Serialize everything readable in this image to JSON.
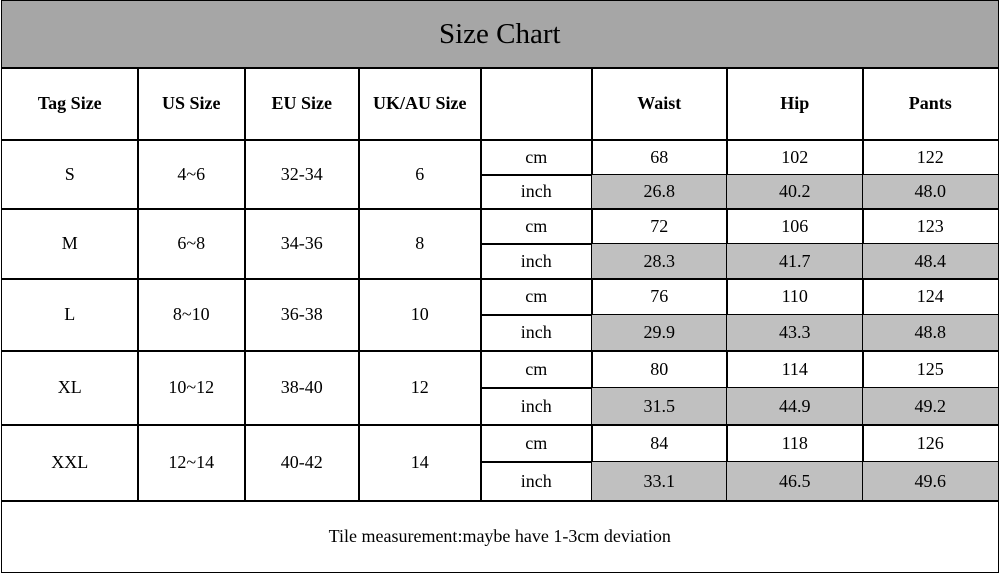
{
  "header": {
    "title": "Size Chart"
  },
  "table": {
    "size_columns": [
      "Tag Size",
      "US Size",
      "EU Size",
      "UK/AU Size"
    ],
    "measure_columns": [
      "Waist",
      "Hip",
      "Pants"
    ],
    "rows": [
      {
        "sizes": [
          "S",
          "4~6",
          "32-34",
          "6"
        ],
        "measurements": [
          {
            "unit": "cm",
            "values": [
              "68",
              "102",
              "122"
            ]
          },
          {
            "unit": "inch",
            "values": [
              "26.8",
              "40.2",
              "48.0"
            ]
          }
        ]
      },
      {
        "sizes": [
          "M",
          "6~8",
          "34-36",
          "8"
        ],
        "measurements": [
          {
            "unit": "cm",
            "values": [
              "72",
              "106",
              "123"
            ]
          },
          {
            "unit": "inch",
            "values": [
              "28.3",
              "41.7",
              "48.4"
            ]
          }
        ]
      },
      {
        "sizes": [
          "L",
          "8~10",
          "36-38",
          "10"
        ],
        "measurements": [
          {
            "unit": "cm",
            "values": [
              "76",
              "110",
              "124"
            ]
          },
          {
            "unit": "inch",
            "values": [
              "29.9",
              "43.3",
              "48.8"
            ]
          }
        ]
      },
      {
        "sizes": [
          "XL",
          "10~12",
          "38-40",
          "12"
        ],
        "measurements": [
          {
            "unit": "cm",
            "values": [
              "80",
              "114",
              "125"
            ]
          },
          {
            "unit": "inch",
            "values": [
              "31.5",
              "44.9",
              "49.2"
            ]
          }
        ]
      },
      {
        "sizes": [
          "XXL",
          "12~14",
          "40-42",
          "14"
        ],
        "measurements": [
          {
            "unit": "cm",
            "values": [
              "84",
              "118",
              "126"
            ]
          },
          {
            "unit": "inch",
            "values": [
              "33.1",
              "46.5",
              "49.6"
            ]
          }
        ]
      }
    ]
  },
  "footer": {
    "note": "Tile measurement:maybe have 1-3cm deviation"
  }
}
